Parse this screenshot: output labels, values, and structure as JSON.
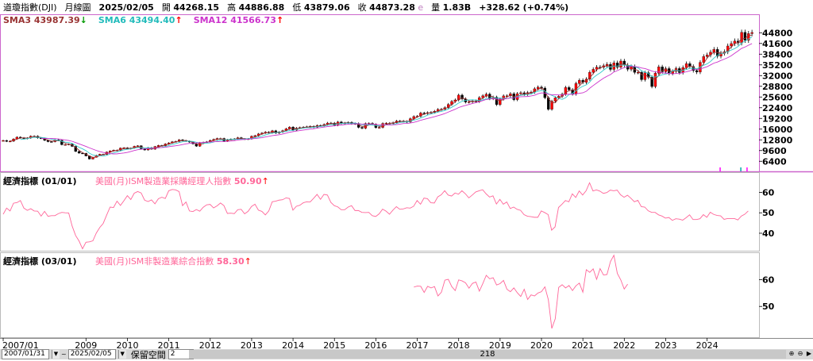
{
  "header": {
    "title": "道瓊指數(DJI)",
    "period": "月線圖",
    "date": "2025/02/05",
    "open_label": "開",
    "open": "44268.15",
    "high_label": "高",
    "high": "44886.88",
    "low_label": "低",
    "low": "43879.06",
    "close_label": "收",
    "close": "44873.28",
    "e_mark": "e",
    "volume_label": "量",
    "volume": "1.83B",
    "change": "+328.62 (+0.74%)"
  },
  "legend": {
    "sma3": "SMA3 43987.39",
    "sma3_arrow": "↓",
    "sma6": "SMA6 43494.40",
    "sma6_arrow": "↑",
    "sma12": "SMA12 41566.73",
    "sma12_arrow": "↑"
  },
  "colors": {
    "up": "#ff0000",
    "down": "#000000",
    "sma3": "#993333",
    "sma6": "#33cccc",
    "sma12": "#cc33cc",
    "indicator": "#ff6699",
    "frame": "#cc66cc"
  },
  "panels": {
    "p2_label": "經濟指標 (01/01)",
    "p2_indicator": "美國(月)ISM製造業採購經理人指數",
    "p2_value": "50.90",
    "p2_arrow": "↑",
    "p3_label": "經濟指標 (03/01)",
    "p3_indicator": "美國(月)ISM非製造業綜合指數",
    "p3_value": "58.30",
    "p3_arrow": "↑"
  },
  "bottom": {
    "start_date": "2007/01/31",
    "end_date": "2025/02/05",
    "space_label": "保留空間",
    "space_value": "2",
    "scroll_value": "218"
  },
  "chart_data": [
    {
      "type": "candlestick",
      "price_ticks": [
        44800,
        41600,
        38400,
        35200,
        32000,
        28800,
        25600,
        22400,
        19200,
        16000,
        12800,
        9600,
        6400
      ],
      "ylim": [
        4800,
        47000
      ],
      "x_ticks": [
        "2007/01",
        "2009",
        "2010",
        "2011",
        "2012",
        "2013",
        "2014",
        "2015",
        "2016",
        "2017",
        "2018",
        "2019",
        "2020",
        "2021",
        "2022",
        "2023",
        "2024"
      ],
      "monthly_close": [
        {
          "year": 2007,
          "values": [
            12600,
            12350,
            12400,
            13050,
            13600,
            13400,
            13200,
            13350,
            13900,
            13900,
            13370,
            13260
          ]
        },
        {
          "year": 2008,
          "values": [
            12650,
            12270,
            12260,
            12820,
            12640,
            11350,
            11380,
            11540,
            10850,
            9330,
            8830,
            8780
          ]
        },
        {
          "year": 2009,
          "values": [
            8000,
            7060,
            7610,
            8170,
            8500,
            8450,
            9170,
            9500,
            9710,
            9710,
            10340,
            10430
          ]
        },
        {
          "year": 2010,
          "values": [
            10070,
            10330,
            10860,
            11010,
            10140,
            9770,
            10470,
            10010,
            10790,
            11120,
            11010,
            11580
          ]
        },
        {
          "year": 2011,
          "values": [
            11890,
            12230,
            12320,
            12810,
            12570,
            12410,
            12140,
            11610,
            10910,
            11960,
            12050,
            12220
          ]
        },
        {
          "year": 2012,
          "values": [
            12630,
            12950,
            13210,
            13210,
            12390,
            12880,
            13010,
            13090,
            13440,
            13100,
            13030,
            13100
          ]
        },
        {
          "year": 2013,
          "values": [
            13860,
            14050,
            14580,
            14840,
            15120,
            14910,
            15500,
            14810,
            15130,
            15550,
            16090,
            16580
          ]
        },
        {
          "year": 2014,
          "values": [
            15700,
            16320,
            16460,
            16580,
            16720,
            16830,
            16560,
            17100,
            17040,
            17390,
            17830,
            17820
          ]
        },
        {
          "year": 2015,
          "values": [
            17160,
            18130,
            17780,
            17840,
            18010,
            17620,
            17690,
            16530,
            16280,
            17660,
            17720,
            17430
          ]
        },
        {
          "year": 2016,
          "values": [
            16470,
            16520,
            17690,
            17770,
            17790,
            17930,
            18430,
            18400,
            18310,
            18140,
            19120,
            19760
          ]
        },
        {
          "year": 2017,
          "values": [
            19860,
            20810,
            20660,
            20940,
            21010,
            21350,
            21890,
            21950,
            22410,
            23380,
            24270,
            24720
          ]
        },
        {
          "year": 2018,
          "values": [
            26150,
            25030,
            24100,
            24160,
            24420,
            24270,
            25420,
            25960,
            26460,
            25120,
            25540,
            23330
          ]
        },
        {
          "year": 2019,
          "values": [
            25000,
            25920,
            25930,
            26590,
            24820,
            26600,
            26860,
            26400,
            26920,
            27050,
            28050,
            28540
          ]
        },
        {
          "year": 2020,
          "values": [
            28260,
            25410,
            21920,
            24350,
            25380,
            25810,
            26430,
            28430,
            27780,
            26500,
            29640,
            30610
          ]
        },
        {
          "year": 2021,
          "values": [
            29980,
            30930,
            32980,
            33870,
            34530,
            34500,
            34940,
            35360,
            33840,
            35820,
            34480,
            36340
          ]
        },
        {
          "year": 2022,
          "values": [
            35130,
            33890,
            34680,
            32980,
            32990,
            30780,
            32850,
            31510,
            28730,
            32730,
            34590,
            33150
          ]
        },
        {
          "year": 2023,
          "values": [
            34090,
            32660,
            33270,
            34100,
            32910,
            34410,
            35560,
            34720,
            33510,
            33050,
            35950,
            37690
          ]
        },
        {
          "year": 2024,
          "values": [
            38150,
            38996,
            39807,
            37816,
            38686,
            39119,
            40843,
            41563,
            42330,
            41763,
            44911,
            42544
          ]
        },
        {
          "year": 2025,
          "values": [
            44544,
            44873
          ]
        }
      ]
    },
    {
      "type": "line",
      "indicator": "美國(月)ISM製造業採購經理人指數",
      "y_ticks": [
        60,
        50,
        40
      ],
      "ylim": [
        33,
        66
      ],
      "x_start": 2007.0,
      "x_step": 0.0833,
      "values": [
        49.3,
        52.3,
        50.9,
        54.7,
        55.0,
        56.0,
        52.3,
        51.2,
        52.0,
        50.9,
        50.8,
        48.4,
        50.7,
        48.3,
        48.6,
        48.6,
        49.6,
        50.2,
        50.0,
        49.9,
        43.5,
        38.9,
        36.2,
        32.4,
        35.6,
        35.8,
        36.3,
        40.1,
        42.8,
        44.8,
        48.9,
        52.8,
        52.6,
        55.7,
        53.6,
        55.9,
        58.4,
        56.5,
        59.6,
        60.4,
        59.7,
        56.2,
        55.5,
        56.3,
        54.4,
        56.9,
        57.6,
        57.0,
        60.8,
        61.4,
        61.2,
        60.4,
        53.5,
        55.3,
        50.9,
        50.6,
        51.6,
        50.8,
        52.7,
        53.9,
        54.1,
        52.4,
        53.4,
        54.8,
        53.5,
        49.7,
        49.8,
        49.6,
        51.5,
        51.7,
        49.5,
        50.7,
        53.1,
        54.2,
        51.3,
        50.7,
        49.0,
        50.9,
        55.4,
        55.7,
        56.2,
        56.4,
        57.3,
        57.0,
        51.3,
        53.2,
        53.7,
        54.9,
        55.4,
        55.3,
        57.1,
        59.0,
        56.6,
        59.0,
        58.7,
        55.1,
        53.5,
        52.9,
        51.5,
        51.5,
        52.8,
        53.5,
        51.1,
        51.1,
        50.2,
        50.1,
        50.2,
        48.6,
        48.2,
        49.5,
        51.8,
        50.8,
        49.3,
        51.3,
        53.0,
        51.7,
        51.9,
        52.5,
        52.3,
        53.2,
        56.0,
        54.2,
        57.2,
        56.9,
        54.9,
        54.8,
        57.8,
        58.8,
        60.8,
        58.7,
        58.2,
        59.7,
        59.1,
        60.8,
        59.3,
        57.3,
        58.7,
        60.2,
        60.8,
        61.3,
        59.3,
        57.7,
        58.3,
        54.3,
        56.6,
        54.2,
        55.3,
        52.1,
        52.8,
        51.7,
        51.2,
        49.1,
        48.3,
        48.1,
        47.8,
        47.8,
        50.9,
        50.1,
        49.1,
        41.5,
        43.1,
        52.6,
        54.2,
        56.0,
        55.4,
        59.3,
        57.5,
        60.7,
        58.7,
        60.8,
        64.7,
        60.7,
        61.2,
        60.6,
        59.5,
        59.9,
        61.1,
        60.8,
        61.1,
        58.8,
        57.6,
        58.6,
        57.1,
        55.4,
        56.1,
        53.0,
        52.8,
        51.0,
        50.2,
        50.2,
        49.0,
        48.4,
        47.4,
        47.7,
        46.3,
        47.1,
        46.9,
        46.4,
        47.6,
        49.0,
        46.7,
        46.7,
        47.1,
        49.1,
        47.8,
        50.3,
        49.2,
        48.7,
        48.5,
        46.8,
        47.2,
        47.2,
        47.2,
        46.5,
        48.4,
        49.3,
        50.9
      ]
    },
    {
      "type": "line",
      "indicator": "美國(月)ISM非製造業綜合指數",
      "y_ticks": [
        60,
        50
      ],
      "ylim": [
        40,
        69
      ],
      "x_start": 2016.917,
      "x_step": 0.0833,
      "values": [
        57.2,
        57.6,
        57.5,
        55.2,
        57.5,
        56.9,
        57.4,
        53.9,
        55.3,
        59.8,
        60.1,
        57.4,
        55.9,
        59.9,
        59.5,
        58.8,
        56.8,
        58.6,
        59.1,
        55.7,
        58.5,
        61.6,
        60.3,
        60.7,
        58.0,
        58.5,
        59.7,
        56.4,
        55.5,
        56.9,
        55.1,
        53.7,
        56.4,
        52.6,
        54.3,
        53.9,
        55.0,
        55.5,
        57.3,
        52.5,
        41.8,
        45.4,
        57.1,
        58.1,
        56.9,
        57.8,
        55.9,
        57.7,
        58.7,
        55.3,
        63.7,
        62.7,
        64.0,
        60.1,
        64.1,
        61.7,
        61.9,
        66.7,
        69.1,
        62.3,
        59.9,
        56.5,
        58.3
      ]
    }
  ]
}
